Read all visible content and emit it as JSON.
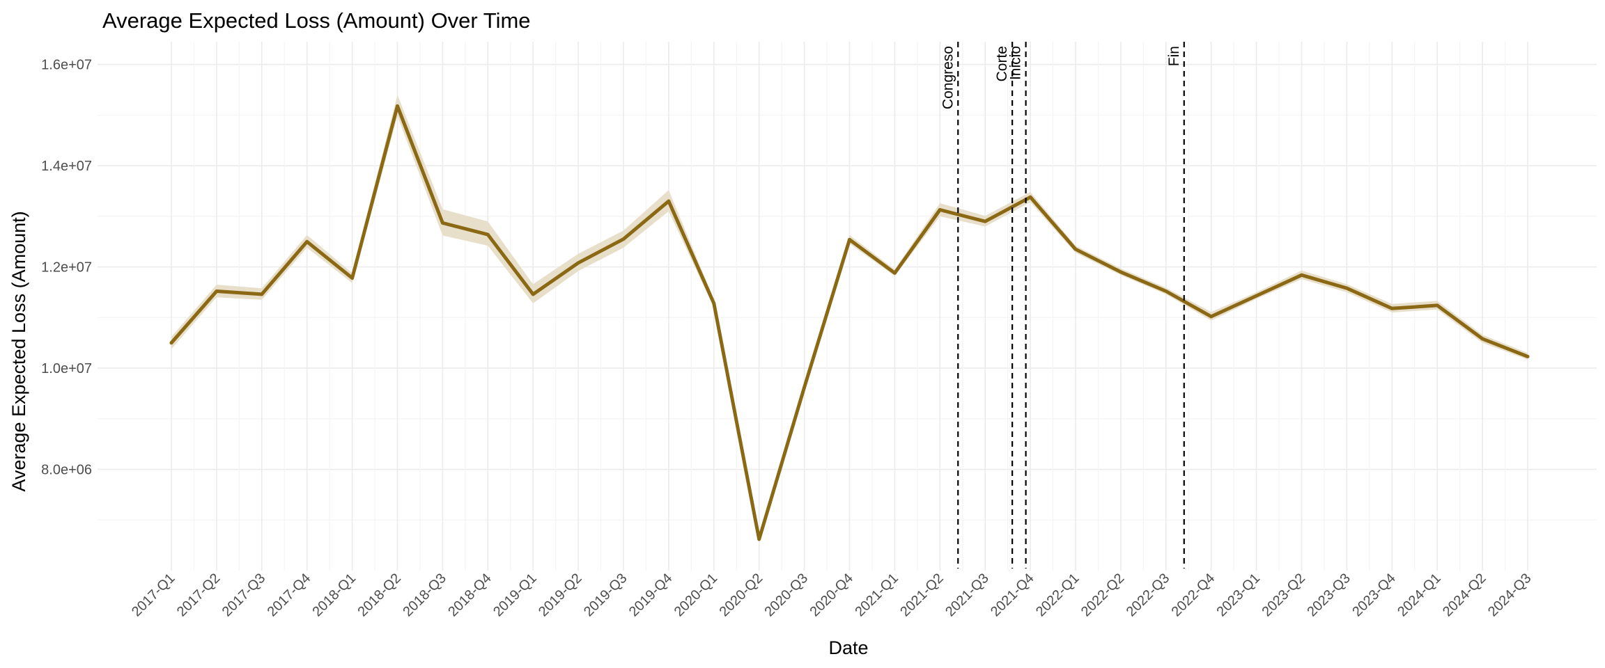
{
  "chart_data": {
    "type": "line",
    "title": "Average Expected Loss (Amount) Over Time",
    "xlabel": "Date",
    "ylabel": "Average Expected Loss (Amount)",
    "categories": [
      "2017-Q1",
      "2017-Q2",
      "2017-Q3",
      "2017-Q4",
      "2018-Q1",
      "2018-Q2",
      "2018-Q3",
      "2018-Q4",
      "2019-Q1",
      "2019-Q2",
      "2019-Q3",
      "2019-Q4",
      "2020-Q1",
      "2020-Q2",
      "2020-Q3",
      "2020-Q4",
      "2021-Q1",
      "2021-Q2",
      "2021-Q3",
      "2021-Q4",
      "2022-Q1",
      "2022-Q2",
      "2022-Q3",
      "2022-Q4",
      "2023-Q1",
      "2023-Q2",
      "2023-Q3",
      "2023-Q4",
      "2024-Q1",
      "2024-Q2",
      "2024-Q3"
    ],
    "ylim": [
      6000000,
      16450000
    ],
    "y_ticks": [
      8000000,
      10000000,
      12000000,
      14000000,
      16000000
    ],
    "y_tick_labels": [
      "8.0e+06",
      "1.0e+07",
      "1.2e+07",
      "1.4e+07",
      "1.6e+07"
    ],
    "series": [
      {
        "values": [
          10500000,
          11520000,
          11460000,
          12500000,
          11780000,
          15180000,
          12870000,
          12640000,
          11460000,
          12080000,
          12550000,
          13300000,
          11280000,
          6620000,
          9620000,
          12540000,
          11880000,
          13130000,
          12900000,
          13380000,
          12350000,
          11900000,
          11520000,
          11020000,
          11430000,
          11840000,
          11580000,
          11180000,
          11240000,
          10580000,
          10230000
        ],
        "lower": [
          10380000,
          11400000,
          11350000,
          12380000,
          11680000,
          14980000,
          12620000,
          12420000,
          11280000,
          11920000,
          12380000,
          13100000,
          11200000,
          6580000,
          9560000,
          12460000,
          11820000,
          13000000,
          12800000,
          13280000,
          12280000,
          11840000,
          11460000,
          10940000,
          11370000,
          11760000,
          11500000,
          11100000,
          11160000,
          10500000,
          10170000
        ],
        "upper": [
          10620000,
          11650000,
          11580000,
          12630000,
          11880000,
          15400000,
          13140000,
          12900000,
          11660000,
          12260000,
          12720000,
          13520000,
          11360000,
          6670000,
          9690000,
          12630000,
          11950000,
          13260000,
          13010000,
          13480000,
          12420000,
          11970000,
          11590000,
          11110000,
          11500000,
          11930000,
          11660000,
          11270000,
          11330000,
          10660000,
          10300000
        ],
        "color": "#8b6914",
        "band_color": "#e8dfcb"
      }
    ],
    "events": [
      {
        "label": "Congreso",
        "position": 17.4
      },
      {
        "label": "Corte",
        "position": 18.6
      },
      {
        "label": "Inicio",
        "position": 18.9
      },
      {
        "label": "Fin",
        "position": 22.4
      }
    ],
    "grid": true,
    "legend": "none"
  }
}
